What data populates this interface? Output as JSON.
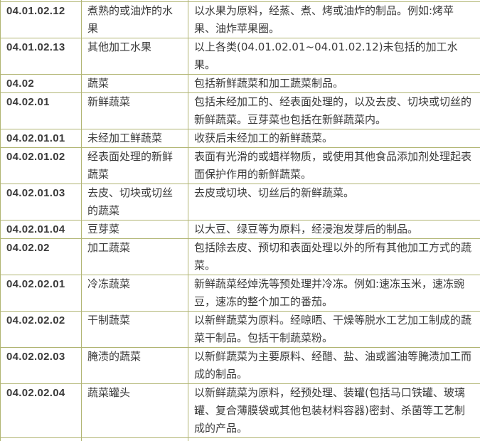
{
  "colors": {
    "table_border": "#b1b573",
    "code_text": "#1c1c1c",
    "body_text": "#3a3a3a",
    "background": "#ffffff"
  },
  "table": {
    "rows": [
      {
        "code": "04.01.02.12",
        "name": "煮熟的或油炸的水果",
        "description": "以水果为原料，经蒸、煮、烤或油炸的制品。例如:烤苹果、油炸苹果圈。"
      },
      {
        "code": "04.01.02.13",
        "name": "其他加工水果",
        "description": "以上各类(04.01.02.01~04.01.02.12)未包括的加工水果。"
      },
      {
        "code": "04.02",
        "name": "蔬菜",
        "description": "包括新鲜蔬菜和加工蔬菜制品。"
      },
      {
        "code": "04.02.01",
        "name": "新鲜蔬菜",
        "description": "包括未经加工的、经表面处理的，以及去皮、切块或切丝的新鲜蔬菜。豆芽菜也包括在新鲜蔬菜内。"
      },
      {
        "code": "04.02.01.01",
        "name": "未经加工鲜蔬菜",
        "description": "收获后未经加工的新鲜蔬菜。"
      },
      {
        "code": "04.02.01.02",
        "name": "经表面处理的新鲜蔬菜",
        "description": "表面有光滑的或蜡样物质，或使用其他食品添加剂处理起表面保护作用的新鲜蔬菜。"
      },
      {
        "code": "04.02.01.03",
        "name": "去皮、切块或切丝的蔬菜",
        "description": "去皮或切块、切丝后的新鲜蔬菜。"
      },
      {
        "code": "04.02.01.04",
        "name": "豆芽菜",
        "description": "以大豆、绿豆等为原料，经浸泡发芽后的制品。"
      },
      {
        "code": "04.02.02",
        "name": "加工蔬菜",
        "description": "包括除去皮、预切和表面处理以外的所有其他加工方式的蔬菜。"
      },
      {
        "code": "04.02.02.01",
        "name": "冷冻蔬菜",
        "description": "新鲜蔬菜经焯洗等预处理并冷冻。例如:速冻玉米，速冻豌豆，速冻的整个加工的番茄。"
      },
      {
        "code": "04.02.02.02",
        "name": "干制蔬菜",
        "description": "以新鲜蔬菜为原料。经晾晒、干燥等脱水工艺加工制成的蔬菜干制品。包括干制蔬菜粉。"
      },
      {
        "code": "04.02.02.03",
        "name": "腌渍的蔬菜",
        "description": "以新鲜蔬菜为主要原料、经醋、盐、油或酱油等腌渍加工而成的制品。"
      },
      {
        "code": "04.02.02.04",
        "name": "蔬菜罐头",
        "description": "以新鲜蔬菜为原料，经预处理、装罐(包括马口铁罐、玻璃罐、复合薄膜袋或其他包装材料容器)密封、杀菌等工艺制成的产品。"
      }
    ]
  }
}
